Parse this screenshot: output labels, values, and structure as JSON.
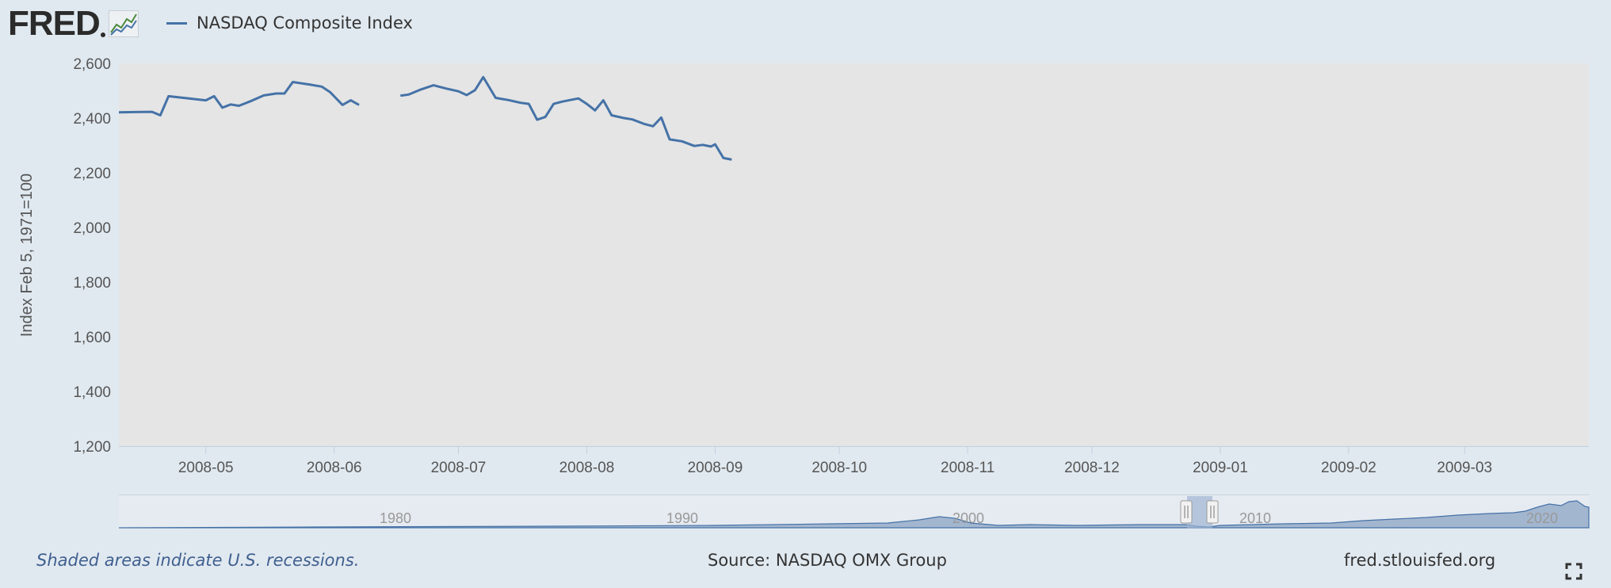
{
  "header": {
    "logo_text": "FRED",
    "logo_icon": "line-chart-icon"
  },
  "legend": {
    "label": "NASDAQ Composite Index",
    "color": "#4572a7"
  },
  "footer": {
    "note": "Shaded areas indicate U.S. recessions.",
    "source": "Source: NASDAQ OMX Group",
    "site": "fred.stlouisfed.org",
    "fullscreen_icon": "fullscreen-icon"
  },
  "colors": {
    "page_bg": "#e1e9f0",
    "plot_bg": "#e5e5e5",
    "series": "#4572a7",
    "navigator_fill": "#a3b6cf",
    "navigator_bg": "#e6ebf1"
  },
  "chart_data": {
    "type": "line",
    "title": "NASDAQ Composite Index",
    "xlabel": "",
    "ylabel": "Index Feb 5, 1971=100",
    "ylim": [
      1200,
      2600
    ],
    "yticks": [
      "1,200",
      "1,400",
      "1,600",
      "1,800",
      "2,000",
      "2,200",
      "2,400",
      "2,600"
    ],
    "xlim": [
      "2008-04-10",
      "2009-03-31"
    ],
    "xticks": [
      {
        "date": "2008-05-01",
        "label": "2008-05"
      },
      {
        "date": "2008-06-01",
        "label": "2008-06"
      },
      {
        "date": "2008-07-01",
        "label": "2008-07"
      },
      {
        "date": "2008-08-01",
        "label": "2008-08"
      },
      {
        "date": "2008-09-01",
        "label": "2008-09"
      },
      {
        "date": "2008-10-01",
        "label": "2008-10"
      },
      {
        "date": "2008-11-01",
        "label": "2008-11"
      },
      {
        "date": "2008-12-01",
        "label": "2008-12"
      },
      {
        "date": "2009-01-01",
        "label": "2009-01"
      },
      {
        "date": "2009-02-01",
        "label": "2009-02"
      },
      {
        "date": "2009-03-01",
        "label": "2009-03"
      }
    ],
    "grid": false,
    "legend": "top-left",
    "series": [
      {
        "name": "NASDAQ Composite Index",
        "segments": [
          [
            [
              "2008-04-10",
              2421
            ],
            [
              "2008-04-14",
              2422
            ],
            [
              "2008-04-18",
              2423
            ],
            [
              "2008-04-20",
              2410
            ],
            [
              "2008-04-22",
              2480
            ],
            [
              "2008-04-28",
              2470
            ],
            [
              "2008-05-01",
              2465
            ],
            [
              "2008-05-03",
              2480
            ],
            [
              "2008-05-05",
              2438
            ],
            [
              "2008-05-07",
              2450
            ],
            [
              "2008-05-09",
              2445
            ],
            [
              "2008-05-12",
              2463
            ],
            [
              "2008-05-15",
              2483
            ],
            [
              "2008-05-18",
              2490
            ],
            [
              "2008-05-20",
              2490
            ],
            [
              "2008-05-22",
              2532
            ],
            [
              "2008-05-26",
              2523
            ],
            [
              "2008-05-29",
              2515
            ],
            [
              "2008-05-31",
              2495
            ],
            [
              "2008-06-03",
              2448
            ],
            [
              "2008-06-05",
              2465
            ],
            [
              "2008-06-07",
              2448
            ]
          ],
          [
            [
              "2008-06-17",
              2482
            ],
            [
              "2008-06-19",
              2486
            ],
            [
              "2008-06-22",
              2505
            ],
            [
              "2008-06-25",
              2520
            ],
            [
              "2008-06-28",
              2508
            ],
            [
              "2008-07-01",
              2498
            ],
            [
              "2008-07-03",
              2484
            ],
            [
              "2008-07-05",
              2502
            ],
            [
              "2008-07-07",
              2550
            ],
            [
              "2008-07-10",
              2474
            ],
            [
              "2008-07-13",
              2466
            ],
            [
              "2008-07-16",
              2456
            ],
            [
              "2008-07-18",
              2452
            ],
            [
              "2008-07-20",
              2394
            ],
            [
              "2008-07-22",
              2404
            ],
            [
              "2008-07-24",
              2452
            ],
            [
              "2008-07-26",
              2460
            ],
            [
              "2008-07-28",
              2466
            ],
            [
              "2008-07-30",
              2472
            ],
            [
              "2008-08-01",
              2452
            ],
            [
              "2008-08-03",
              2428
            ],
            [
              "2008-08-05",
              2465
            ],
            [
              "2008-08-07",
              2410
            ],
            [
              "2008-08-10",
              2400
            ],
            [
              "2008-08-12",
              2395
            ],
            [
              "2008-08-15",
              2378
            ],
            [
              "2008-08-17",
              2370
            ],
            [
              "2008-08-19",
              2402
            ],
            [
              "2008-08-21",
              2322
            ],
            [
              "2008-08-24",
              2315
            ],
            [
              "2008-08-27",
              2298
            ],
            [
              "2008-08-29",
              2302
            ],
            [
              "2008-08-31",
              2296
            ],
            [
              "2008-09-01",
              2304
            ],
            [
              "2008-09-03",
              2254
            ],
            [
              "2008-09-05",
              2248
            ]
          ]
        ]
      }
    ]
  }
}
